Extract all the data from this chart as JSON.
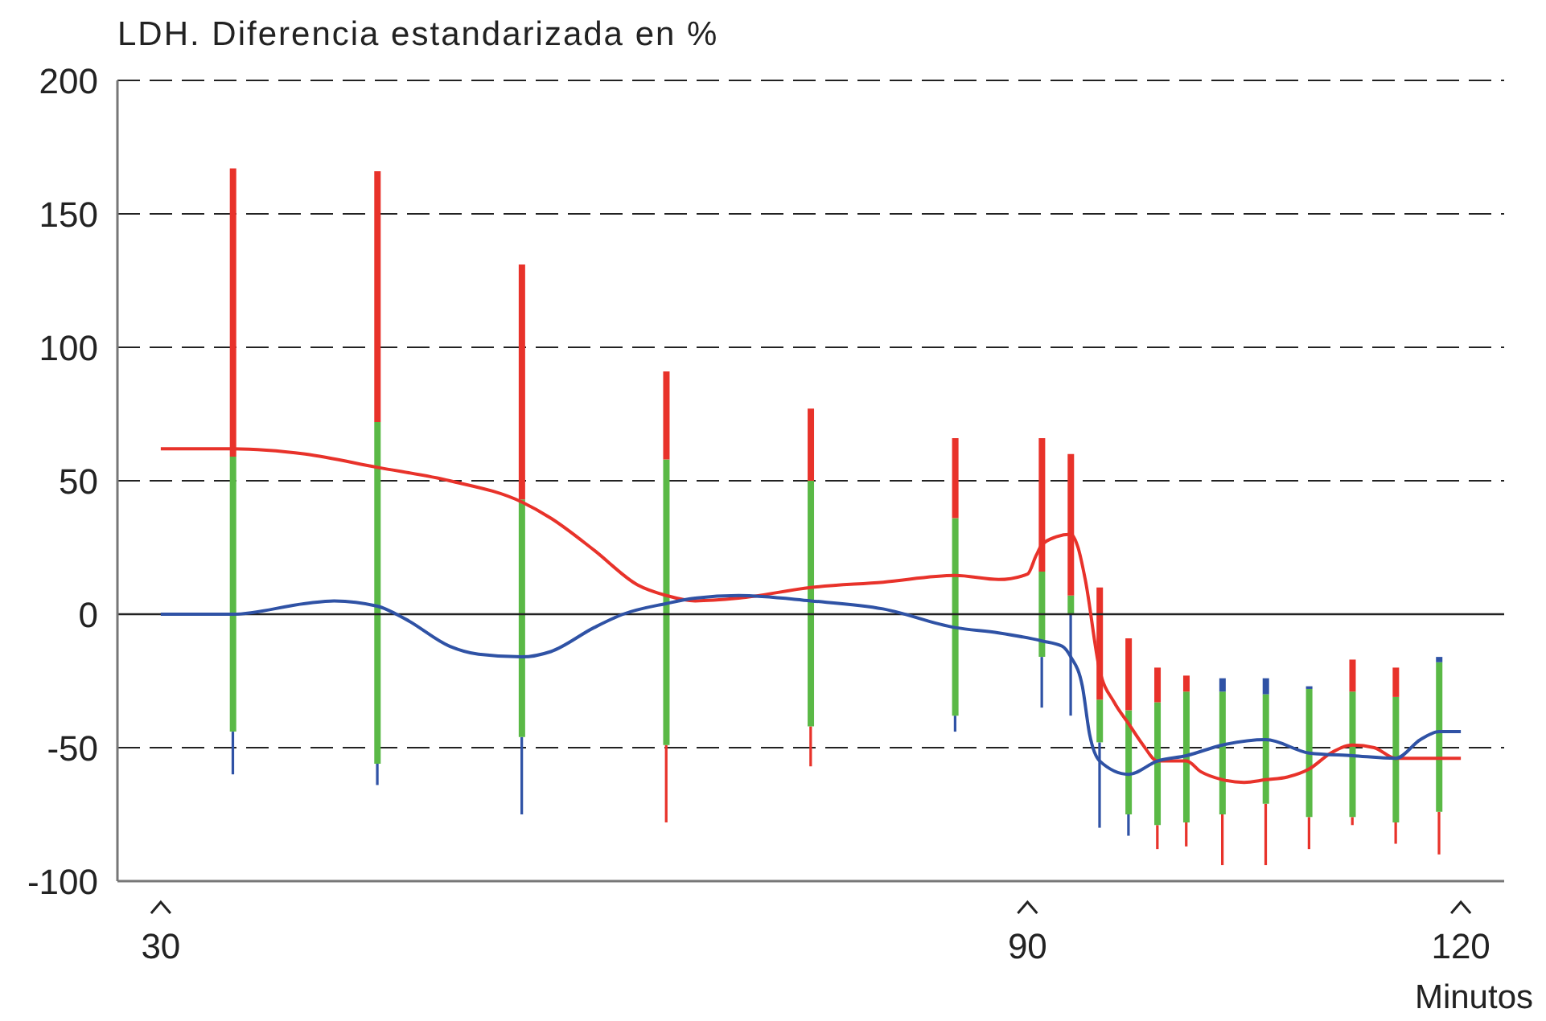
{
  "chart_data": {
    "type": "bar",
    "title": "LDH. Diferencia estandarizada en %",
    "xlabel": "Minutos",
    "x": [
      35,
      45,
      55,
      65,
      75,
      85,
      91,
      93,
      95,
      97,
      99,
      101,
      103.5,
      106.5,
      109.5,
      112.5,
      115.5,
      118.5
    ],
    "series": [
      {
        "base": [
          -60,
          -64,
          -75,
          -78,
          -57,
          -44,
          -35,
          -38,
          -80,
          -83,
          -88,
          -87,
          -94,
          -94,
          -88,
          -79,
          -86,
          -90
        ],
        "colors": [
          "#2f52a5",
          "#2f52a5",
          "#2f52a5",
          "#e8322a",
          "#e8322a",
          "#2f52a5",
          "#2f52a5",
          "#2f52a5",
          "#2f52a5",
          "#2f52a5",
          "#e8322a",
          "#e8322a",
          "#e8322a",
          "#e8322a",
          "#e8322a",
          "#e8322a",
          "#e8322a",
          "#e8322a"
        ],
        "values": [
          16,
          8,
          29,
          29,
          15,
          6,
          19,
          38,
          32,
          8,
          9,
          9,
          19,
          23,
          12,
          3,
          8,
          16
        ]
      },
      {
        "base": [
          -44,
          -56,
          -46,
          -49,
          -42,
          -38,
          -16,
          0,
          -48,
          -75,
          -79,
          -78,
          -75,
          -71,
          -76,
          -76,
          -78,
          -74
        ],
        "color": "#5ab946",
        "values": [
          103,
          128,
          89,
          107,
          92,
          74,
          32,
          7,
          16,
          39,
          46,
          49,
          46,
          41,
          48,
          47,
          47,
          56
        ]
      },
      {
        "base": [
          59,
          72,
          43,
          58,
          50,
          36,
          16,
          7,
          -32,
          -36,
          -33,
          -29,
          -29,
          -30,
          -28,
          -29,
          -31,
          -18
        ],
        "colors": [
          "#e8322a",
          "#e8322a",
          "#e8322a",
          "#e8322a",
          "#e8322a",
          "#e8322a",
          "#e8322a",
          "#e8322a",
          "#e8322a",
          "#e8322a",
          "#e8322a",
          "#e8322a",
          "#2f52a5",
          "#2f52a5",
          "#2f52a5",
          "#e8322a",
          "#e8322a",
          "#2f52a5"
        ],
        "values": [
          108,
          94,
          88,
          33,
          27,
          30,
          50,
          53,
          42,
          27,
          13,
          6,
          5,
          6,
          1,
          12,
          11,
          2
        ]
      },
      {
        "type": "line",
        "color": "#e8322a",
        "x": [
          30,
          35,
          40,
          45,
          50,
          55,
          57,
          60,
          63,
          65,
          67,
          70,
          75,
          80,
          85,
          88,
          90,
          90.6,
          91,
          92,
          93,
          93.5,
          94,
          95,
          96,
          97,
          98,
          99,
          101,
          102,
          103.5,
          105,
          106.5,
          108,
          109.5,
          111,
          112.5,
          114,
          115.5,
          117,
          120
        ],
        "values": [
          62,
          62,
          60,
          55,
          50,
          42,
          36,
          24,
          11,
          7,
          5,
          6,
          10,
          12,
          14.5,
          13,
          15,
          22,
          26,
          29,
          30,
          25,
          13,
          -21,
          -33,
          -41,
          -49,
          -55,
          -55,
          -59,
          -62,
          -63,
          -62,
          -61,
          -58,
          -52,
          -49,
          -50,
          -54,
          -54,
          -54
        ]
      },
      {
        "type": "line",
        "color": "#2f52a5",
        "x": [
          30,
          35,
          40,
          42,
          45,
          47,
          50,
          52,
          55,
          57,
          60,
          62,
          65,
          67,
          70,
          75,
          80,
          85,
          88,
          91,
          92.4,
          93,
          93.8,
          94.3,
          95,
          97,
          99,
          101,
          103.5,
          106.5,
          109.5,
          112.5,
          115.5,
          117.2,
          118.5,
          120
        ],
        "values": [
          0,
          0,
          4,
          5,
          3,
          -2,
          -12,
          -15,
          -16,
          -14,
          -5,
          0,
          4,
          6,
          7,
          5,
          2,
          -5,
          -7,
          -10,
          -12,
          -16,
          -27,
          -45,
          -55,
          -60,
          -55,
          -53,
          -49,
          -47,
          -52,
          -53,
          -54,
          -47,
          -44,
          -44
        ]
      }
    ],
    "xlim": [
      27,
      123
    ],
    "xticks": [
      30,
      90,
      120
    ],
    "ylim": [
      -100,
      200
    ],
    "yticks": [
      -100,
      -50,
      0,
      50,
      100,
      150,
      200
    ],
    "grid": "y",
    "ref_lines": [
      {
        "axis": "y",
        "value": 0,
        "color": "#222222",
        "line_style": "solid"
      }
    ],
    "marker": "none",
    "line_style": "solid"
  }
}
